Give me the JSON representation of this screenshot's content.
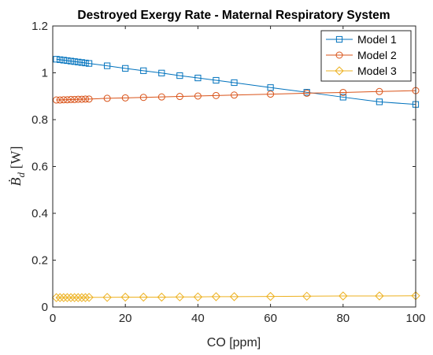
{
  "chart_data": {
    "type": "line",
    "title": "Destroyed Exergy Rate - Maternal Respiratory System",
    "xlabel": "CO [ppm]",
    "ylabel_main": "Ḃ",
    "ylabel_sub": "d",
    "ylabel_unit": " [W]",
    "xlim": [
      0,
      100
    ],
    "ylim": [
      0,
      1.2
    ],
    "xticks": [
      0,
      20,
      40,
      60,
      80,
      100
    ],
    "xtick_labels": [
      "0",
      "20",
      "40",
      "60",
      "80",
      "100"
    ],
    "yticks": [
      0,
      0.2,
      0.4,
      0.6,
      0.8,
      1,
      1.2
    ],
    "ytick_labels": [
      "0",
      "0.2",
      "0.4",
      "0.6",
      "0.8",
      "1",
      "1.2"
    ],
    "grid": false,
    "legend_position": "top-right",
    "x": [
      1,
      2,
      3,
      4,
      5,
      6,
      7,
      8,
      9,
      10,
      15,
      20,
      25,
      30,
      35,
      40,
      45,
      50,
      60,
      70,
      80,
      90,
      100
    ],
    "series": [
      {
        "name": "Model 1",
        "color": "#0072BD",
        "marker": "square",
        "values": [
          1.058,
          1.056,
          1.054,
          1.052,
          1.05,
          1.048,
          1.046,
          1.044,
          1.042,
          1.04,
          1.03,
          1.019,
          1.009,
          0.999,
          0.988,
          0.978,
          0.968,
          0.958,
          0.937,
          0.917,
          0.896,
          0.876,
          0.865
        ]
      },
      {
        "name": "Model 2",
        "color": "#D95319",
        "marker": "circle",
        "values": [
          0.884,
          0.884,
          0.885,
          0.885,
          0.886,
          0.886,
          0.887,
          0.887,
          0.888,
          0.888,
          0.891,
          0.893,
          0.895,
          0.897,
          0.899,
          0.901,
          0.903,
          0.905,
          0.909,
          0.913,
          0.916,
          0.92,
          0.924
        ]
      },
      {
        "name": "Model 3",
        "color": "#EDB120",
        "marker": "diamond",
        "values": [
          0.04,
          0.04,
          0.04,
          0.04,
          0.04,
          0.04,
          0.04,
          0.04,
          0.04,
          0.041,
          0.041,
          0.042,
          0.042,
          0.042,
          0.043,
          0.043,
          0.044,
          0.044,
          0.045,
          0.046,
          0.047,
          0.047,
          0.048
        ]
      }
    ]
  }
}
